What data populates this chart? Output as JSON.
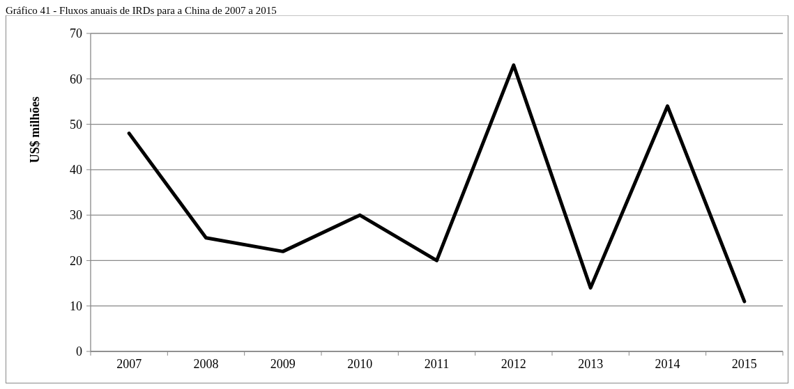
{
  "chart_data": {
    "type": "line",
    "title": "Gráfico 41 - Fluxos anuais de IRDs para a China de 2007 a 2015",
    "ylabel": "US$ milhões",
    "categories": [
      "2007",
      "2008",
      "2009",
      "2010",
      "2011",
      "2012",
      "2013",
      "2014",
      "2015"
    ],
    "series": [
      {
        "color": "#000000",
        "values": [
          48,
          25,
          22,
          30,
          20,
          63,
          14,
          54,
          11
        ]
      }
    ],
    "ylim": [
      0,
      70
    ],
    "yticks": [
      0,
      10,
      20,
      30,
      40,
      50,
      60,
      70
    ],
    "grid": "y",
    "marker": "none",
    "line_style": "solid"
  }
}
